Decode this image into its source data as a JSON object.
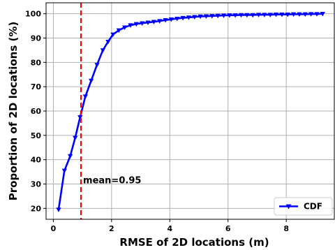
{
  "chart_data": {
    "type": "line",
    "title": "",
    "xlabel": "RMSE of 2D locations (m)",
    "ylabel": "Proportion of 2D locations (%)",
    "xlim": [
      -0.25,
      9.65
    ],
    "ylim": [
      15.5,
      104.5
    ],
    "xticks": [
      0,
      2,
      4,
      6,
      8
    ],
    "yticks": [
      20,
      30,
      40,
      50,
      60,
      70,
      80,
      90,
      100
    ],
    "grid": true,
    "legend_position": "lower-right",
    "series": [
      {
        "name": "CDF",
        "color": "#0000ff",
        "marker": "triangle-down",
        "x": [
          0.18,
          0.38,
          0.58,
          0.75,
          0.92,
          1.1,
          1.3,
          1.5,
          1.7,
          1.88,
          2.05,
          2.25,
          2.45,
          2.65,
          2.85,
          3.05,
          3.25,
          3.45,
          3.65,
          3.85,
          4.05,
          4.25,
          4.45,
          4.65,
          4.85,
          5.05,
          5.25,
          5.45,
          5.65,
          5.85,
          6.05,
          6.25,
          6.45,
          6.65,
          6.85,
          7.05,
          7.25,
          7.45,
          7.65,
          7.85,
          8.05,
          8.25,
          8.45,
          8.65,
          8.85,
          9.05,
          9.25
        ],
        "y": [
          19.5,
          35.5,
          41.5,
          49.0,
          57.5,
          66.0,
          72.5,
          79.0,
          85.0,
          88.5,
          91.5,
          93.2,
          94.4,
          95.3,
          95.8,
          96.1,
          96.4,
          96.7,
          97.0,
          97.4,
          97.7,
          98.0,
          98.3,
          98.5,
          98.7,
          98.9,
          99.0,
          99.1,
          99.2,
          99.3,
          99.4,
          99.4,
          99.5,
          99.5,
          99.5,
          99.6,
          99.6,
          99.6,
          99.7,
          99.7,
          99.7,
          99.8,
          99.8,
          99.8,
          99.9,
          99.9,
          100.0
        ]
      }
    ],
    "mean_line": {
      "x": 0.95,
      "color": "#ff0000",
      "label": "mean=0.95"
    }
  }
}
